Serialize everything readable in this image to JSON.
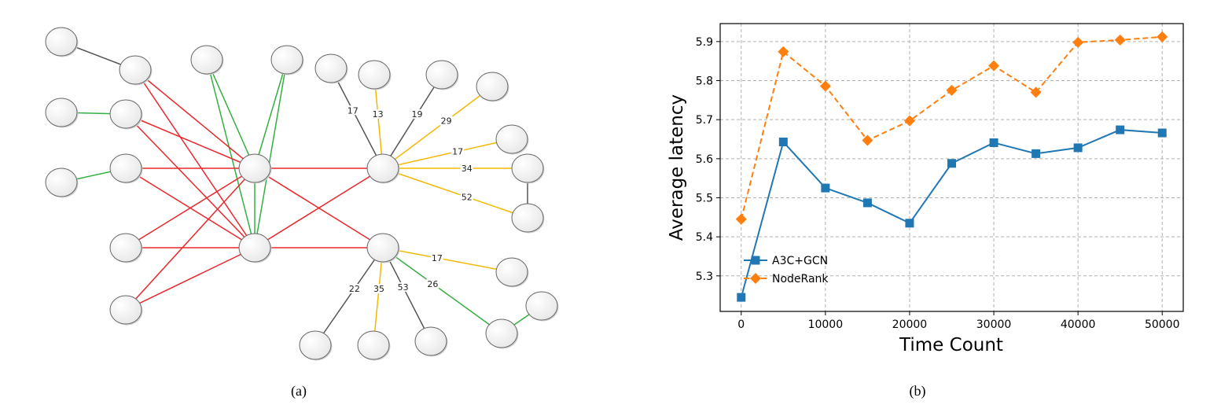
{
  "captions": {
    "a": "(a)",
    "b": "(b)"
  },
  "diagram": {
    "colors": {
      "gray": "#555555",
      "green": "#33b040",
      "yellow": "#f5b800",
      "red": "#e8282c"
    },
    "nodes": [
      "n1",
      "n2",
      "n3",
      "n4",
      "n5",
      "n6",
      "n7",
      "n8",
      "n9",
      "n10",
      "n11",
      "n12",
      "n13",
      "n14",
      "n15",
      "n16",
      "n17",
      "n18",
      "n19",
      "n20",
      "n21",
      "n22",
      "n23",
      "n24",
      "n25",
      "n26",
      "n27"
    ],
    "edges": [
      {
        "from": "n1",
        "to": "n2",
        "color": "gray",
        "label": ""
      },
      {
        "from": "n9",
        "to": "n10",
        "color": "green",
        "label": ""
      },
      {
        "from": "n12",
        "to": "n13",
        "color": "green",
        "label": ""
      },
      {
        "from": "n3",
        "to": "n14",
        "color": "green",
        "label": ""
      },
      {
        "from": "n3",
        "to": "n19",
        "color": "green",
        "label": ""
      },
      {
        "from": "n4",
        "to": "n14",
        "color": "green",
        "label": ""
      },
      {
        "from": "n4",
        "to": "n19",
        "color": "green",
        "label": ""
      },
      {
        "from": "n14",
        "to": "n19",
        "color": "green",
        "label": ""
      },
      {
        "from": "n2",
        "to": "n14",
        "color": "red",
        "label": ""
      },
      {
        "from": "n2",
        "to": "n19",
        "color": "red",
        "label": ""
      },
      {
        "from": "n10",
        "to": "n19",
        "color": "red",
        "label": ""
      },
      {
        "from": "n10",
        "to": "n19",
        "color": "red",
        "label": ""
      },
      {
        "from": "n13",
        "to": "n14",
        "color": "red",
        "label": ""
      },
      {
        "from": "n13",
        "to": "n19",
        "color": "red",
        "label": ""
      },
      {
        "from": "n18",
        "to": "n14",
        "color": "red",
        "label": ""
      },
      {
        "from": "n18",
        "to": "n19",
        "color": "red",
        "label": ""
      },
      {
        "from": "n22",
        "to": "n14",
        "color": "red",
        "label": ""
      },
      {
        "from": "n22",
        "to": "n19",
        "color": "red",
        "label": ""
      },
      {
        "from": "n14",
        "to": "n15",
        "color": "red",
        "label": ""
      },
      {
        "from": "n14",
        "to": "n20",
        "color": "red",
        "label": ""
      },
      {
        "from": "n19",
        "to": "n15",
        "color": "red",
        "label": ""
      },
      {
        "from": "n19",
        "to": "n20",
        "color": "red",
        "label": ""
      },
      {
        "from": "n5",
        "to": "n15",
        "color": "gray",
        "label": "17"
      },
      {
        "from": "n6",
        "to": "n15",
        "color": "yellow",
        "label": "13"
      },
      {
        "from": "n7",
        "to": "n15",
        "color": "gray",
        "label": "19"
      },
      {
        "from": "n8",
        "to": "n15",
        "color": "yellow",
        "label": "29"
      },
      {
        "from": "n11",
        "to": "n15",
        "color": "yellow",
        "label": "17"
      },
      {
        "from": "n16",
        "to": "n15",
        "color": "yellow",
        "label": "34"
      },
      {
        "from": "n17",
        "to": "n15",
        "color": "yellow",
        "label": "52"
      },
      {
        "from": "n16",
        "to": "n17",
        "color": "gray",
        "label": ""
      },
      {
        "from": "n20",
        "to": "n21",
        "color": "yellow",
        "label": "17"
      },
      {
        "from": "n20",
        "to": "n24",
        "color": "gray",
        "label": "22"
      },
      {
        "from": "n20",
        "to": "n25",
        "color": "yellow",
        "label": "35"
      },
      {
        "from": "n20",
        "to": "n26",
        "color": "gray",
        "label": "53"
      },
      {
        "from": "n20",
        "to": "n27",
        "color": "green",
        "label": "26"
      },
      {
        "from": "n27",
        "to": "n23",
        "color": "green",
        "label": ""
      }
    ]
  },
  "chart_data": {
    "type": "line",
    "title": "",
    "xlabel": "Time Count",
    "ylabel": "Average latency",
    "xlim": [
      -2500,
      52500
    ],
    "ylim": [
      5.209,
      5.946
    ],
    "xticks": [
      0,
      10000,
      20000,
      30000,
      40000,
      50000
    ],
    "yticks": [
      5.3,
      5.4,
      5.5,
      5.6,
      5.7,
      5.8,
      5.9
    ],
    "grid": true,
    "legend_position": "bottom-left",
    "x": [
      0,
      5000,
      10000,
      15000,
      20000,
      25000,
      30000,
      35000,
      40000,
      45000,
      50000
    ],
    "series": [
      {
        "name": "A3C+GCN",
        "color": "#1f77b4",
        "marker": "square",
        "linestyle": "solid",
        "values": [
          5.245,
          5.643,
          5.525,
          5.487,
          5.435,
          5.588,
          5.641,
          5.613,
          5.628,
          5.674,
          5.666
        ]
      },
      {
        "name": "NodeRank",
        "color": "#ff7f0e",
        "marker": "diamond",
        "linestyle": "dashed",
        "values": [
          5.445,
          5.874,
          5.786,
          5.647,
          5.697,
          5.775,
          5.838,
          5.77,
          5.898,
          5.904,
          5.912
        ]
      }
    ]
  }
}
